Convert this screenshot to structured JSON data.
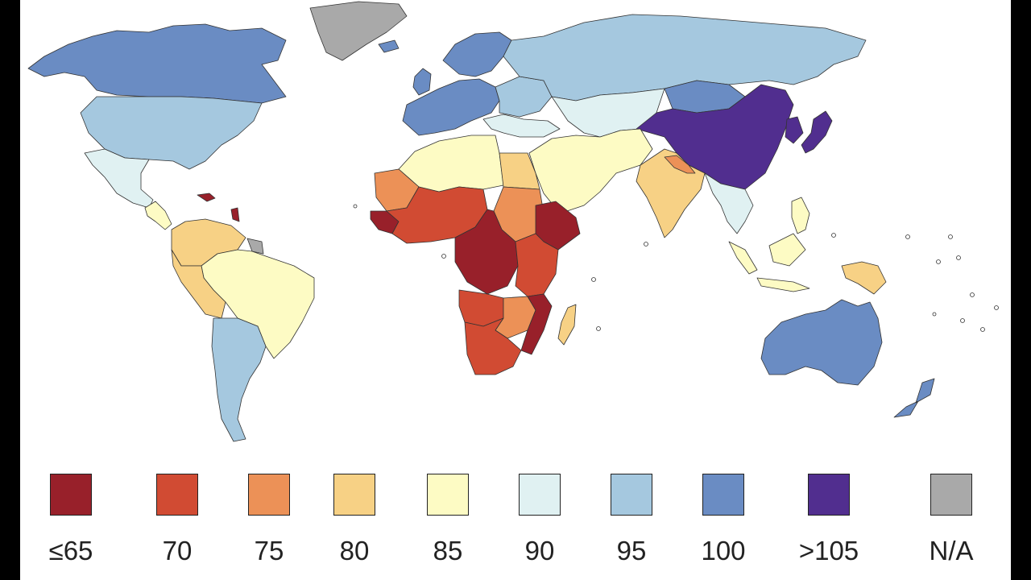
{
  "legend": {
    "items": [
      {
        "label": "≤65",
        "color": "#98202a"
      },
      {
        "label": "70",
        "color": "#d14b33"
      },
      {
        "label": "75",
        "color": "#ec9157"
      },
      {
        "label": "80",
        "color": "#f7d185"
      },
      {
        "label": "85",
        "color": "#fdfbc4"
      },
      {
        "label": "90",
        "color": "#e0f1f2"
      },
      {
        "label": "95",
        "color": "#a5c8df"
      },
      {
        "label": "100",
        "color": "#6a8cc3"
      },
      {
        "label": ">105",
        "color": "#512e8f"
      },
      {
        "label": "N/A",
        "color": "#a9a9a9"
      }
    ]
  },
  "regions": [
    {
      "name": "north-america-north",
      "bin": 7
    },
    {
      "name": "greenland",
      "bin": 9
    },
    {
      "name": "usa",
      "bin": 6
    },
    {
      "name": "mexico",
      "bin": 5
    },
    {
      "name": "central-america",
      "bin": 4
    },
    {
      "name": "caribbean",
      "bin": 0
    },
    {
      "name": "colombia-venezuela",
      "bin": 3
    },
    {
      "name": "brazil",
      "bin": 4
    },
    {
      "name": "peru-bolivia",
      "bin": 3
    },
    {
      "name": "argentina-chile",
      "bin": 6
    },
    {
      "name": "guianas",
      "bin": 9
    },
    {
      "name": "iceland",
      "bin": 7
    },
    {
      "name": "uk-ireland",
      "bin": 7
    },
    {
      "name": "scandinavia",
      "bin": 7
    },
    {
      "name": "western-europe",
      "bin": 7
    },
    {
      "name": "eastern-europe",
      "bin": 6
    },
    {
      "name": "balkans-turkey",
      "bin": 5
    },
    {
      "name": "russia",
      "bin": 6
    },
    {
      "name": "central-asia",
      "bin": 5
    },
    {
      "name": "mongolia",
      "bin": 7
    },
    {
      "name": "china",
      "bin": 8
    },
    {
      "name": "korea",
      "bin": 8
    },
    {
      "name": "japan",
      "bin": 8
    },
    {
      "name": "middle-east",
      "bin": 4
    },
    {
      "name": "india",
      "bin": 3
    },
    {
      "name": "nepal-bangladesh",
      "bin": 2
    },
    {
      "name": "southeast-asia",
      "bin": 5
    },
    {
      "name": "indonesia-malaysia",
      "bin": 4
    },
    {
      "name": "philippines",
      "bin": 4
    },
    {
      "name": "papua",
      "bin": 3
    },
    {
      "name": "australia",
      "bin": 7
    },
    {
      "name": "new-zealand",
      "bin": 7
    },
    {
      "name": "north-africa",
      "bin": 4
    },
    {
      "name": "egypt",
      "bin": 3
    },
    {
      "name": "mauritania-western-sahara",
      "bin": 2
    },
    {
      "name": "west-africa",
      "bin": 1
    },
    {
      "name": "senegal-guinea",
      "bin": 0
    },
    {
      "name": "central-africa",
      "bin": 0
    },
    {
      "name": "sudan",
      "bin": 2
    },
    {
      "name": "horn-of-africa",
      "bin": 0
    },
    {
      "name": "east-africa",
      "bin": 1
    },
    {
      "name": "angola",
      "bin": 1
    },
    {
      "name": "zambia-zimbabwe",
      "bin": 2
    },
    {
      "name": "mozambique",
      "bin": 0
    },
    {
      "name": "southern-africa",
      "bin": 1
    },
    {
      "name": "madagascar",
      "bin": 3
    }
  ]
}
